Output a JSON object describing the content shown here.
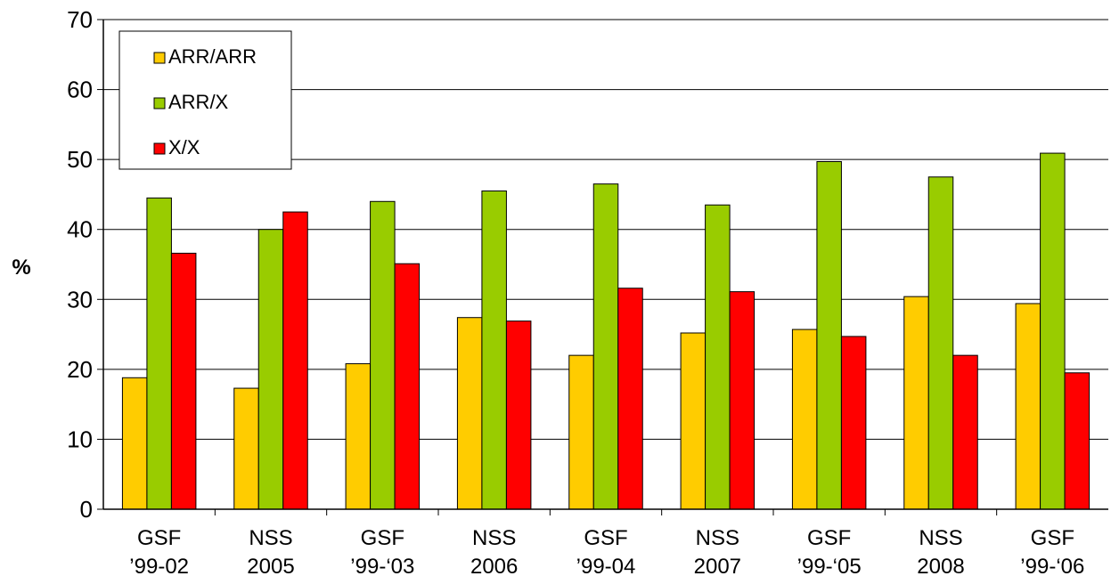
{
  "chart_data": {
    "type": "bar",
    "title": "",
    "xlabel": "",
    "ylabel": "%",
    "ylim": [
      0,
      70
    ],
    "yticks": [
      "0",
      "10",
      "20",
      "30",
      "40",
      "50",
      "60",
      "70"
    ],
    "grid": true,
    "legend_position": "top-left",
    "categories": [
      [
        "GSF",
        "’99-02"
      ],
      [
        "NSS",
        "2005"
      ],
      [
        "GSF",
        "’99-‘03"
      ],
      [
        "NSS",
        "2006"
      ],
      [
        "GSF",
        "’99-04"
      ],
      [
        "NSS",
        "2007"
      ],
      [
        "GSF",
        "’99-‘05"
      ],
      [
        "NSS",
        "2008"
      ],
      [
        "GSF",
        "’99-‘06"
      ]
    ],
    "series": [
      {
        "name": "ARR/ARR",
        "color": "#FFCC00",
        "values": [
          18.8,
          17.3,
          20.8,
          27.4,
          22.0,
          25.2,
          25.7,
          30.4,
          29.4
        ]
      },
      {
        "name": "ARR/X",
        "color": "#99CC00",
        "values": [
          44.5,
          40.0,
          44.0,
          45.5,
          46.5,
          43.5,
          49.7,
          47.5,
          50.9
        ]
      },
      {
        "name": "X/X",
        "color": "#FF0000",
        "values": [
          36.6,
          42.5,
          35.1,
          26.9,
          31.6,
          31.1,
          24.7,
          22.0,
          19.5
        ]
      }
    ]
  }
}
